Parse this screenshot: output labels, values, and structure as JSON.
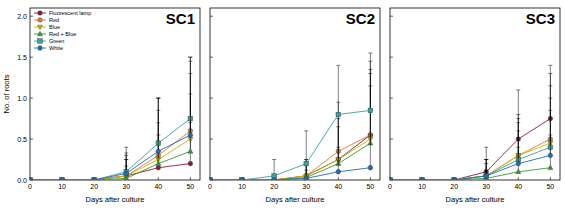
{
  "chart_data": [
    {
      "type": "line",
      "title": "SC1",
      "x_label": "Days after culture",
      "y_label": "No. of roots",
      "x": [
        0,
        10,
        20,
        30,
        40,
        50
      ],
      "xlim": [
        0,
        53
      ],
      "xticks": [
        0,
        10,
        20,
        30,
        40,
        50
      ],
      "ylim": [
        0,
        2.1
      ],
      "yticks": [
        {
          "value": 0,
          "label": "0.0"
        },
        {
          "value": 0.5,
          "label": "0.5"
        },
        {
          "value": 1,
          "label": "1.0"
        },
        {
          "value": 1.5,
          "label": "1.5"
        },
        {
          "value": 2,
          "label": "2.0"
        }
      ],
      "legend": "upper left",
      "tick_labels": true,
      "series": [
        {
          "name": "Fluorescent lamp",
          "color": "#8b1a3a",
          "marker": "circle",
          "values": [
            0,
            0,
            0,
            0.05,
            0.15,
            0.2
          ],
          "errors": [
            0,
            0,
            0,
            0.2,
            0.4,
            0.5
          ]
        },
        {
          "name": "Red",
          "color": "#e07b39",
          "marker": "circle",
          "values": [
            0,
            0,
            0,
            0.05,
            0.3,
            0.6
          ],
          "errors": [
            0,
            0,
            0,
            0.25,
            0.7,
            0.9
          ]
        },
        {
          "name": "Blue",
          "color": "#c8b400",
          "marker": "triangle-down",
          "values": [
            0,
            0,
            0,
            0.05,
            0.25,
            0.5
          ],
          "errors": [
            0,
            0,
            0,
            0.2,
            0.6,
            0.8
          ]
        },
        {
          "name": "Red + Blue",
          "color": "#3a9a3a",
          "marker": "triangle-up",
          "values": [
            0,
            0,
            0,
            0.02,
            0.2,
            0.35
          ],
          "errors": [
            0,
            0,
            0,
            0.15,
            0.5,
            0.7
          ]
        },
        {
          "name": "Green",
          "color": "#3aa0a0",
          "marker": "square",
          "values": [
            0,
            0,
            0,
            0.1,
            0.45,
            0.75
          ],
          "errors": [
            0,
            0,
            0,
            0.3,
            0.55,
            0.75
          ]
        },
        {
          "name": "White",
          "color": "#1f6fb0",
          "marker": "hexagon",
          "values": [
            0,
            0,
            0,
            0.08,
            0.35,
            0.55
          ],
          "errors": [
            0,
            0,
            0,
            0.25,
            0.65,
            0.9
          ]
        }
      ]
    },
    {
      "type": "line",
      "title": "SC2",
      "x_label": "Days after culture",
      "x": [
        0,
        10,
        20,
        30,
        40,
        50
      ],
      "xlim": [
        0,
        53
      ],
      "xticks": [
        0,
        10,
        20,
        30,
        40,
        50
      ],
      "ylim": [
        0,
        2.1
      ],
      "yticks": [
        0,
        0.5,
        1,
        1.5,
        2
      ],
      "tick_labels": "x",
      "series": [
        {
          "name": "Fluorescent lamp",
          "color": "#8b1a3a",
          "marker": "circle",
          "values": [
            0,
            0,
            0,
            0.05,
            0.25,
            0.55
          ],
          "errors": [
            0,
            0,
            0,
            0.2,
            0.55,
            0.8
          ]
        },
        {
          "name": "Red",
          "color": "#e07b39",
          "marker": "circle",
          "values": [
            0,
            0,
            0,
            0.05,
            0.35,
            0.55
          ],
          "errors": [
            0,
            0,
            0,
            0.2,
            0.6,
            0.9
          ]
        },
        {
          "name": "Blue",
          "color": "#c8b400",
          "marker": "triangle-down",
          "values": [
            0,
            0,
            0,
            0.05,
            0.25,
            0.5
          ],
          "errors": [
            0,
            0,
            0,
            0.15,
            0.5,
            0.8
          ]
        },
        {
          "name": "Red + Blue",
          "color": "#3a9a3a",
          "marker": "triangle-up",
          "values": [
            0,
            0,
            0,
            0.03,
            0.2,
            0.45
          ],
          "errors": [
            0,
            0,
            0,
            0.15,
            0.45,
            0.7
          ]
        },
        {
          "name": "Green",
          "color": "#3aa0a0",
          "marker": "square",
          "values": [
            0,
            0,
            0.05,
            0.2,
            0.8,
            0.85
          ],
          "errors": [
            0,
            0,
            0.2,
            0.4,
            0.6,
            0.7
          ]
        },
        {
          "name": "White",
          "color": "#1f6fb0",
          "marker": "hexagon",
          "values": [
            0,
            0,
            0,
            0.02,
            0.1,
            0.15
          ],
          "errors": [
            0,
            0,
            0,
            0.1,
            0.3,
            0.4
          ]
        }
      ]
    },
    {
      "type": "line",
      "title": "SC3",
      "x_label": "Days after culture",
      "x": [
        0,
        10,
        20,
        30,
        40,
        50
      ],
      "xlim": [
        0,
        53
      ],
      "xticks": [
        0,
        10,
        20,
        30,
        40,
        50
      ],
      "ylim": [
        0,
        2.1
      ],
      "yticks": [
        0,
        0.5,
        1,
        1.5,
        2
      ],
      "tick_labels": "x",
      "series": [
        {
          "name": "Fluorescent lamp",
          "color": "#8b1a3a",
          "marker": "circle",
          "values": [
            0,
            0,
            0,
            0.1,
            0.5,
            0.75
          ],
          "errors": [
            0,
            0,
            0,
            0.3,
            0.6,
            0.65
          ]
        },
        {
          "name": "Red",
          "color": "#e07b39",
          "marker": "circle",
          "values": [
            0,
            0,
            0,
            0.05,
            0.3,
            0.5
          ],
          "errors": [
            0,
            0,
            0,
            0.2,
            0.5,
            0.8
          ]
        },
        {
          "name": "Blue",
          "color": "#c8b400",
          "marker": "triangle-down",
          "values": [
            0,
            0,
            0,
            0.05,
            0.3,
            0.45
          ],
          "errors": [
            0,
            0,
            0,
            0.2,
            0.45,
            0.7
          ]
        },
        {
          "name": "Red + Blue",
          "color": "#3a9a3a",
          "marker": "triangle-up",
          "values": [
            0,
            0,
            0,
            0.02,
            0.1,
            0.15
          ],
          "errors": [
            0,
            0,
            0,
            0.1,
            0.3,
            0.4
          ]
        },
        {
          "name": "Green",
          "color": "#3aa0a0",
          "marker": "square",
          "values": [
            0,
            0,
            0,
            0.05,
            0.25,
            0.4
          ],
          "errors": [
            0,
            0,
            0,
            0.2,
            0.45,
            0.6
          ]
        },
        {
          "name": "White",
          "color": "#1f6fb0",
          "marker": "hexagon",
          "values": [
            0,
            0,
            0,
            0.05,
            0.2,
            0.3
          ],
          "errors": [
            0,
            0,
            0,
            0.15,
            0.4,
            0.55
          ]
        }
      ]
    }
  ]
}
